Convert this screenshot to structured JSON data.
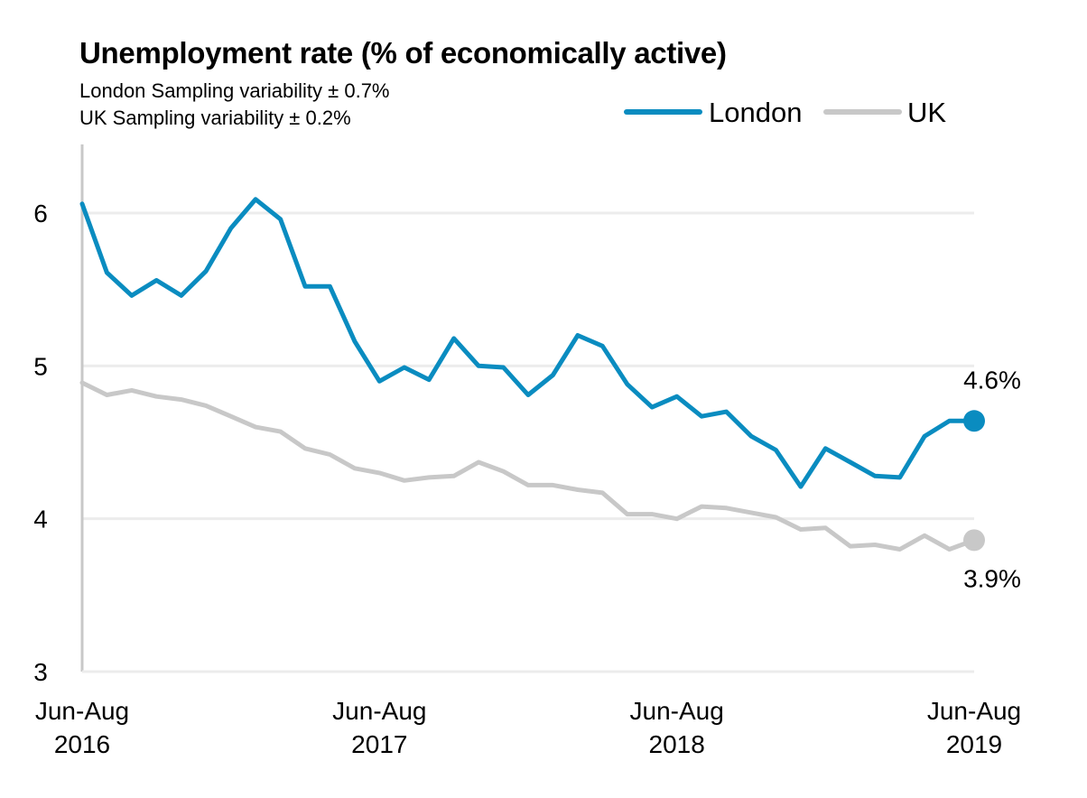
{
  "chart_data": {
    "type": "line",
    "title": "Unemployment rate (% of economically active)",
    "subtitles": [
      "London Sampling variability ± 0.7%",
      "UK Sampling variability ± 0.2%"
    ],
    "xlabel": "",
    "ylabel": "",
    "ylim": [
      3,
      6.5
    ],
    "yticks": [
      3,
      4,
      5,
      6
    ],
    "x_tick_labels": [
      {
        "index": 0,
        "lines": [
          "Jun-Aug",
          "2016"
        ]
      },
      {
        "index": 12,
        "lines": [
          "Jun-Aug",
          "2017"
        ]
      },
      {
        "index": 24,
        "lines": [
          "Jun-Aug",
          "2018"
        ]
      },
      {
        "index": 36,
        "lines": [
          "Jun-Aug",
          "2019"
        ]
      }
    ],
    "grid": "horizontal",
    "legend_position": "top-right",
    "series": [
      {
        "name": "London",
        "color": "#0a8cc0",
        "values": [
          6.06,
          5.61,
          5.46,
          5.56,
          5.46,
          5.62,
          5.9,
          6.09,
          5.96,
          5.52,
          5.52,
          5.16,
          4.9,
          4.99,
          4.91,
          5.18,
          5.0,
          4.99,
          4.81,
          4.94,
          5.2,
          5.13,
          4.88,
          4.73,
          4.8,
          4.67,
          4.7,
          4.54,
          4.45,
          4.21,
          4.46,
          4.37,
          4.28,
          4.27,
          4.54,
          4.64,
          4.64
        ],
        "end_label": "4.6%"
      },
      {
        "name": "UK",
        "color": "#c8c8c8",
        "values": [
          4.89,
          4.81,
          4.84,
          4.8,
          4.78,
          4.74,
          4.67,
          4.6,
          4.57,
          4.46,
          4.42,
          4.33,
          4.3,
          4.25,
          4.27,
          4.28,
          4.37,
          4.31,
          4.22,
          4.22,
          4.19,
          4.17,
          4.03,
          4.03,
          4.0,
          4.08,
          4.07,
          4.04,
          4.01,
          3.93,
          3.94,
          3.82,
          3.83,
          3.8,
          3.89,
          3.8,
          3.86
        ],
        "end_label": "3.9%"
      }
    ]
  }
}
